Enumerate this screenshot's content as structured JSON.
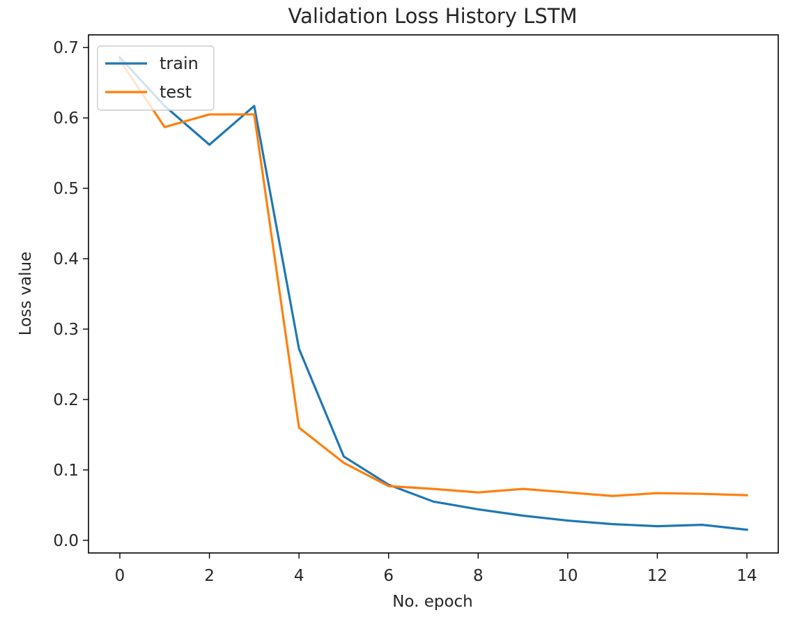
{
  "chart_data": {
    "type": "line",
    "title": "Validation Loss History LSTM",
    "xlabel": "No. epoch",
    "ylabel": "Loss value",
    "xlim": [
      -0.7,
      14.7
    ],
    "ylim": [
      -0.018,
      0.718
    ],
    "xticks": [
      0,
      2,
      4,
      6,
      8,
      10,
      12,
      14
    ],
    "xtick_labels": [
      "0",
      "2",
      "4",
      "6",
      "8",
      "10",
      "12",
      "14"
    ],
    "yticks": [
      0.0,
      0.1,
      0.2,
      0.3,
      0.4,
      0.5,
      0.6,
      0.7
    ],
    "ytick_labels": [
      "0.0",
      "0.1",
      "0.2",
      "0.3",
      "0.4",
      "0.5",
      "0.6",
      "0.7"
    ],
    "grid": false,
    "legend": {
      "position": "upper-left",
      "entries": [
        "train",
        "test"
      ]
    },
    "x": [
      0,
      1,
      2,
      3,
      4,
      5,
      6,
      7,
      8,
      9,
      10,
      11,
      12,
      13,
      14
    ],
    "series": [
      {
        "name": "train",
        "color": "#1f77b4",
        "values": [
          0.686,
          0.617,
          0.562,
          0.617,
          0.272,
          0.119,
          0.079,
          0.055,
          0.044,
          0.035,
          0.028,
          0.023,
          0.02,
          0.022,
          0.015
        ]
      },
      {
        "name": "test",
        "color": "#ff7f0e",
        "values": [
          0.682,
          0.587,
          0.605,
          0.605,
          0.16,
          0.11,
          0.077,
          0.073,
          0.068,
          0.073,
          0.068,
          0.063,
          0.067,
          0.066,
          0.064
        ]
      }
    ]
  }
}
